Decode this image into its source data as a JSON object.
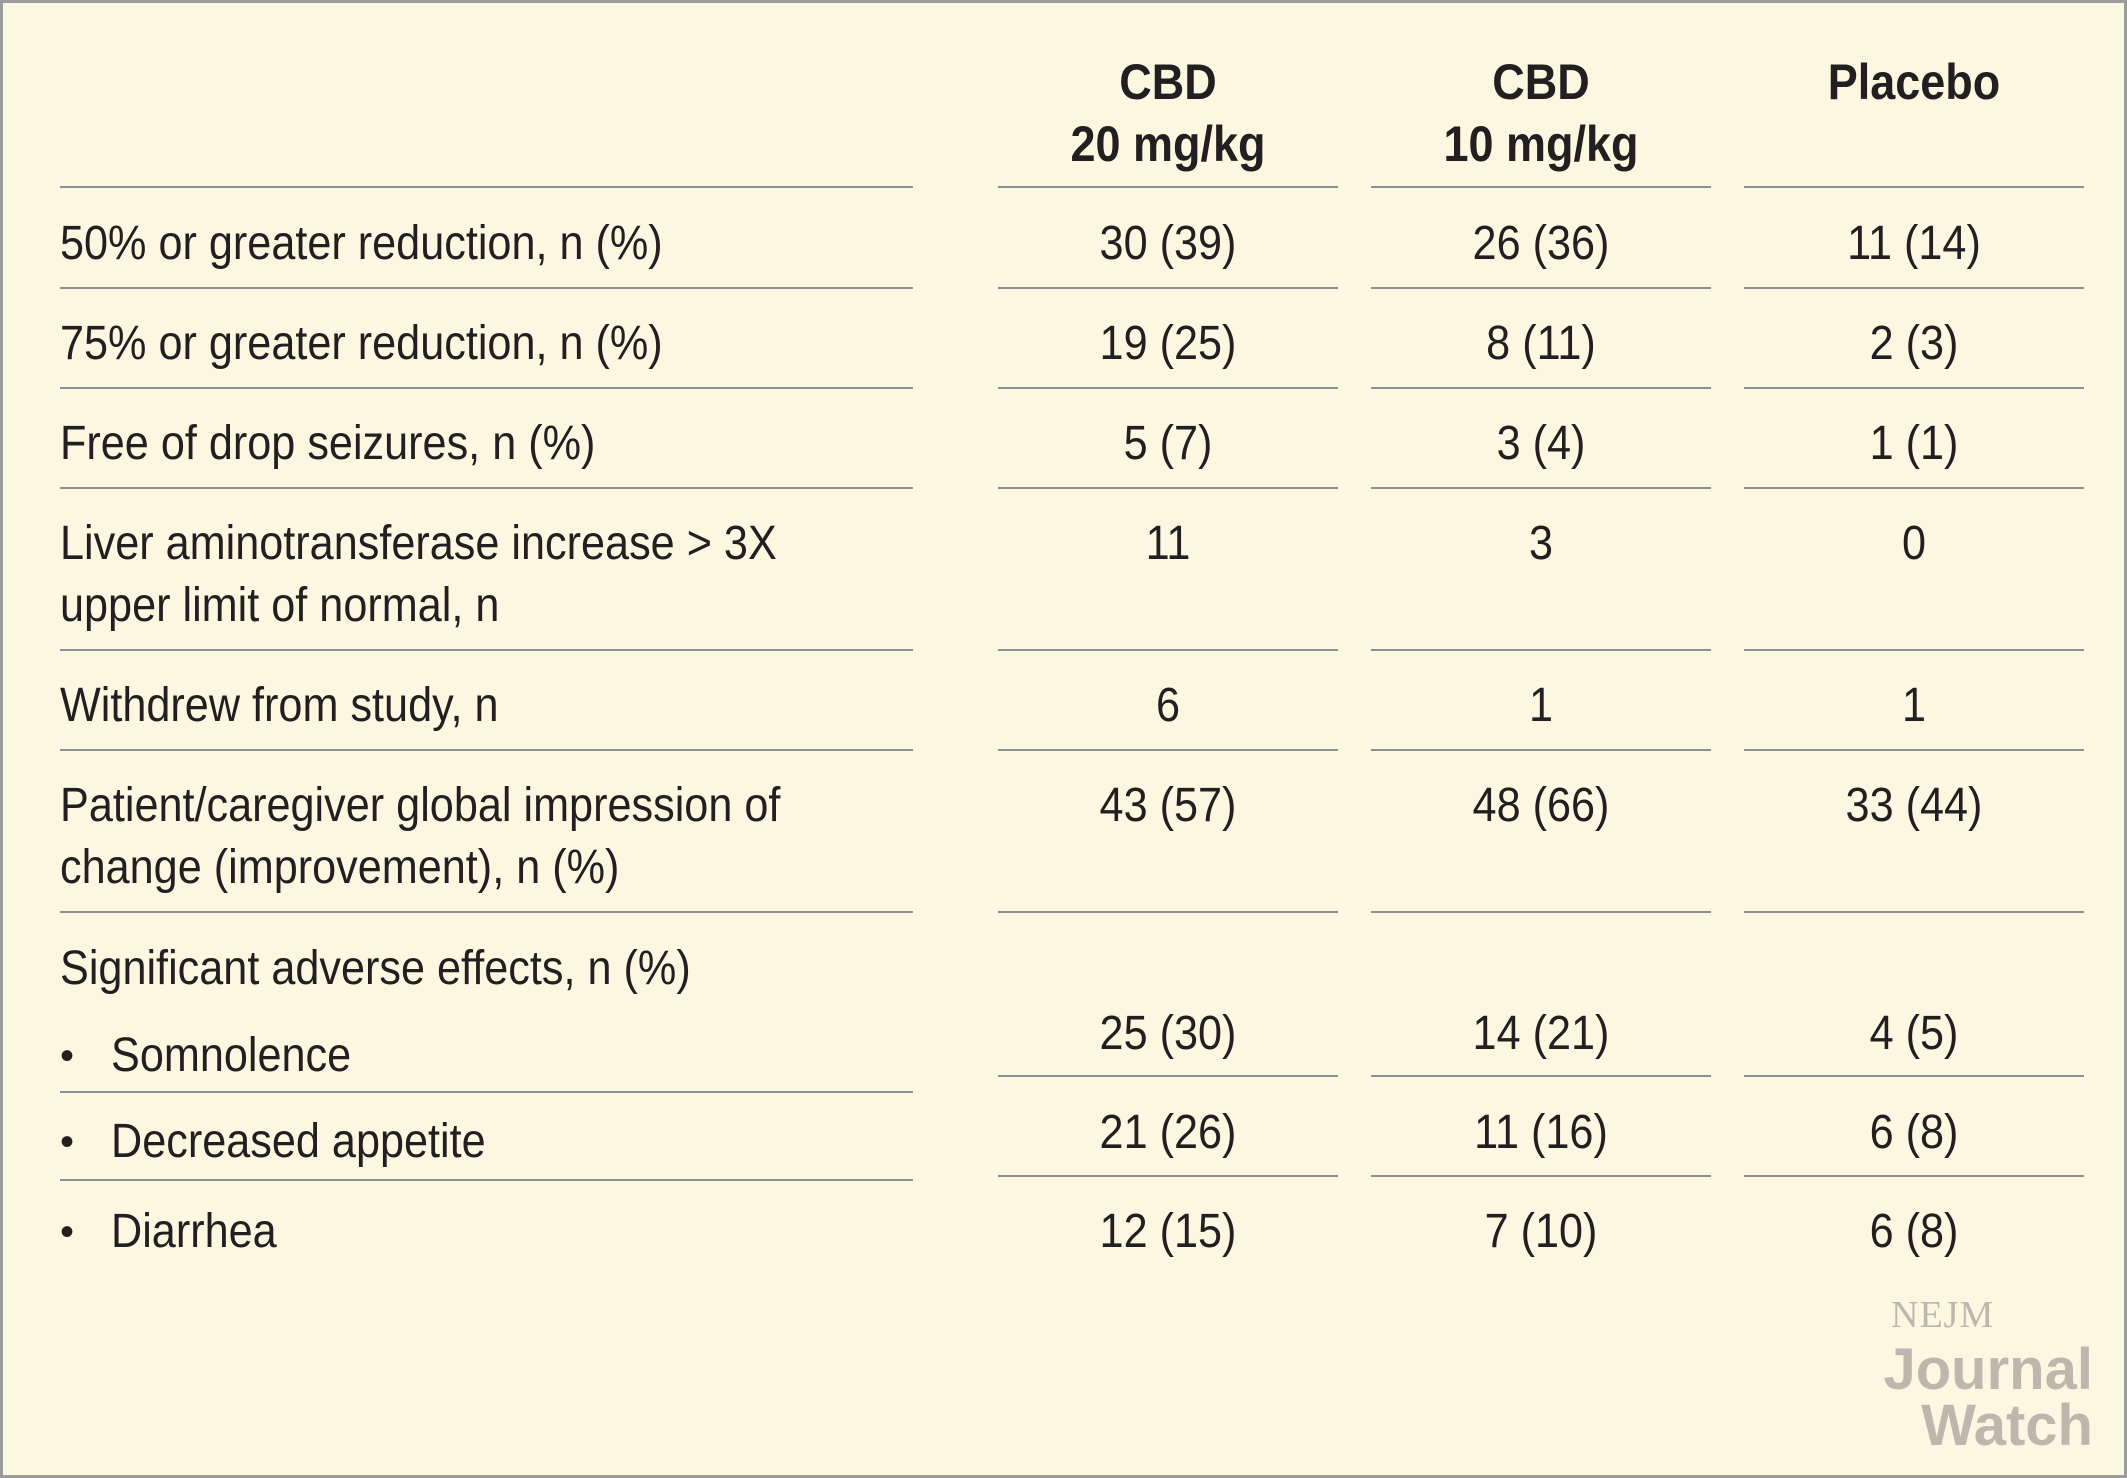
{
  "columns": [
    {
      "line1": "CBD",
      "line2": "20 mg/kg"
    },
    {
      "line1": "CBD",
      "line2": "10 mg/kg"
    },
    {
      "line1": "Placebo",
      "line2": ""
    }
  ],
  "rows": [
    {
      "label1": "50% or greater reduction, n (%)",
      "label2": "",
      "values": [
        "30 (39)",
        "26 (36)",
        "11 (14)"
      ]
    },
    {
      "label1": "75% or greater reduction, n (%)",
      "label2": "",
      "values": [
        "19 (25)",
        "8 (11)",
        "2 (3)"
      ]
    },
    {
      "label1": "Free of drop seizures, n (%)",
      "label2": "",
      "values": [
        "5 (7)",
        "3 (4)",
        "1 (1)"
      ]
    },
    {
      "label1": "Liver aminotransferase increase > 3X",
      "label2": "upper limit of normal, n",
      "values": [
        "11",
        "3",
        "0"
      ]
    },
    {
      "label1": "Withdrew from study, n",
      "label2": "",
      "values": [
        "6",
        "1",
        "1"
      ]
    },
    {
      "label1": "Patient/caregiver global impression of",
      "label2": "change (improvement), n (%)",
      "values": [
        "43 (57)",
        "48 (66)",
        "33 (44)"
      ]
    }
  ],
  "adverse": {
    "title": "Significant adverse effects, n (%)",
    "bullet": "•",
    "items": [
      {
        "label": "Somnolence",
        "values": [
          "25 (30)",
          "14 (21)",
          "4 (5)"
        ]
      },
      {
        "label": "Decreased appetite",
        "values": [
          "21 (26)",
          "11 (16)",
          "6 (8)"
        ]
      },
      {
        "label": "Diarrhea",
        "values": [
          "12 (15)",
          "7 (10)",
          "6 (8)"
        ]
      }
    ]
  },
  "logo": {
    "nejm": "NEJM",
    "journal": "Journal",
    "watch": "Watch"
  }
}
